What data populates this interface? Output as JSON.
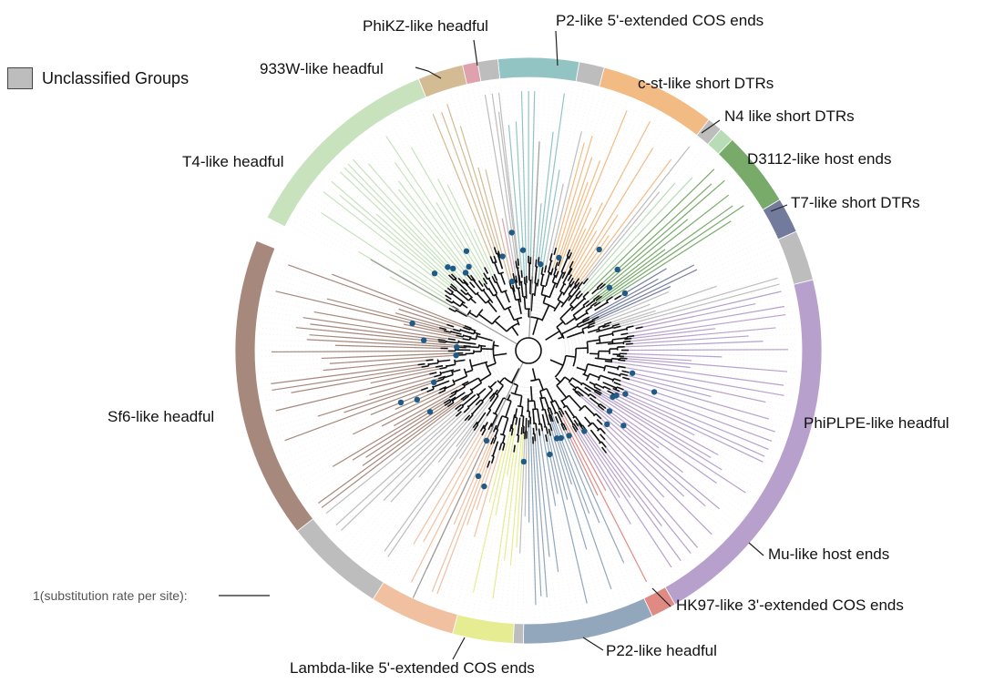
{
  "legend": {
    "label": "Unclassified Groups",
    "color": "#bdbdbd"
  },
  "scale_bar": {
    "label": "1(substitution rate per site):"
  },
  "groups": [
    {
      "name": "P2-like 5'-extended COS ends",
      "color": "#93c4c4",
      "start": -6,
      "end": 10
    },
    {
      "name": "",
      "color": "#bdbdbd",
      "start": 10,
      "end": 15
    },
    {
      "name": "c-st-like short DTRs",
      "color": "#f2bb84",
      "start": 15,
      "end": 38
    },
    {
      "name": "",
      "color": "#bdbdbd",
      "start": 38,
      "end": 41
    },
    {
      "name": "N4 like short DTRs",
      "color": "#b8dcb6",
      "start": 41,
      "end": 44
    },
    {
      "name": "D3112-like host ends",
      "color": "#78aa6a",
      "start": 44,
      "end": 59
    },
    {
      "name": "T7-like short DTRs",
      "color": "#737b9d",
      "start": 59,
      "end": 66
    },
    {
      "name": "",
      "color": "#bdbdbd",
      "start": 66,
      "end": 76
    },
    {
      "name": "PhiPLPE-like headful",
      "color": "#b7a1cc",
      "start": 76,
      "end": 150
    },
    {
      "name": "Mu-like host ends",
      "color": "#e08a84",
      "start": 150,
      "end": 155
    },
    {
      "name": "HK97-like 3'-extended COS ends",
      "color": "#93a7bc",
      "start": 155,
      "end": 181
    },
    {
      "name": "",
      "color": "#bdbdbd",
      "start": 181,
      "end": 183
    },
    {
      "name": "P22-like headful",
      "color": "#e6ec91",
      "start": 183,
      "end": 195
    },
    {
      "name": "Lambda-like 5'-extended COS ends",
      "color": "#f0c0a0",
      "start": 195,
      "end": 212
    },
    {
      "name": "",
      "color": "#bdbdbd",
      "start": 212,
      "end": 232
    },
    {
      "name": "Sf6-like headful",
      "color": "#a7887c",
      "start": 232,
      "end": 292
    },
    {
      "name": "T4-like headful",
      "color": "#c7e2bd",
      "start": 297,
      "end": 338
    },
    {
      "name": "933W-like headful",
      "color": "#d3bb94",
      "start": 338,
      "end": 347
    },
    {
      "name": "PhiKZ-like headful",
      "color": "#dfa1ae",
      "start": 347,
      "end": 350
    },
    {
      "name": "",
      "color": "#bdbdbd",
      "start": 350,
      "end": 354
    }
  ]
}
